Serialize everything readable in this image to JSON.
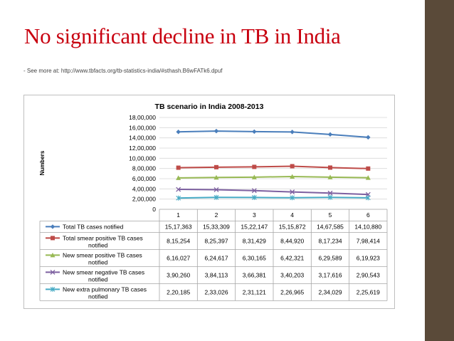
{
  "slide": {
    "title": "No significant decline in TB in India",
    "source": "- See more at: http://www.tbfacts.org/tb-statistics-india/#sthash.B6wFATk6.dpuf"
  },
  "colors": {
    "title": "#c8000f",
    "sidebar": "#5a4a39"
  },
  "chart_data": {
    "type": "line",
    "title": "TB scenario in India 2008-2013",
    "ylabel": "Numbers",
    "xlabel": "",
    "categories": [
      "1",
      "2",
      "3",
      "4",
      "5",
      "6"
    ],
    "ylim": [
      0,
      1800000
    ],
    "yticks": [
      0,
      200000,
      400000,
      600000,
      800000,
      1000000,
      1200000,
      1400000,
      1600000,
      1800000
    ],
    "ytick_labels": [
      "0",
      "2,00,000",
      "4,00,000",
      "6,00,000",
      "8,00,000",
      "10,00,000",
      "12,00,000",
      "14,00,000",
      "16,00,000",
      "18,00,000"
    ],
    "grid": true,
    "legend_placement": "data table below plot",
    "series": [
      {
        "name": "Total TB cases notified",
        "color": "#4a7ebb",
        "marker": "diamond",
        "values": [
          1517363,
          1533309,
          1522147,
          1515872,
          1467585,
          1410880
        ],
        "labels": [
          "15,17,363",
          "15,33,309",
          "15,22,147",
          "15,15,872",
          "14,67,585",
          "14,10,880"
        ]
      },
      {
        "name": "Total smear positive TB cases notified",
        "color": "#be4b48",
        "marker": "square",
        "values": [
          815254,
          825397,
          831429,
          844920,
          817234,
          798414
        ],
        "labels": [
          "8,15,254",
          "8,25,397",
          "8,31,429",
          "8,44,920",
          "8,17,234",
          "7,98,414"
        ]
      },
      {
        "name": "New smear positive TB cases notified",
        "color": "#98b954",
        "marker": "triangle",
        "values": [
          616027,
          624617,
          630165,
          642321,
          629589,
          619923
        ],
        "labels": [
          "6,16,027",
          "6,24,617",
          "6,30,165",
          "6,42,321",
          "6,29,589",
          "6,19,923"
        ]
      },
      {
        "name": "New smear negative TB cases notified",
        "color": "#7d60a0",
        "marker": "x",
        "values": [
          390260,
          384113,
          366381,
          340203,
          317616,
          290543
        ],
        "labels": [
          "3,90,260",
          "3,84,113",
          "3,66,381",
          "3,40,203",
          "3,17,616",
          "2,90,543"
        ]
      },
      {
        "name": "New extra pulmonary TB cases notified",
        "color": "#46aac4",
        "marker": "star",
        "values": [
          220185,
          233026,
          231121,
          226965,
          234029,
          225619
        ],
        "labels": [
          "2,20,185",
          "2,33,026",
          "2,31,121",
          "2,26,965",
          "2,34,029",
          "2,25,619"
        ]
      }
    ]
  }
}
